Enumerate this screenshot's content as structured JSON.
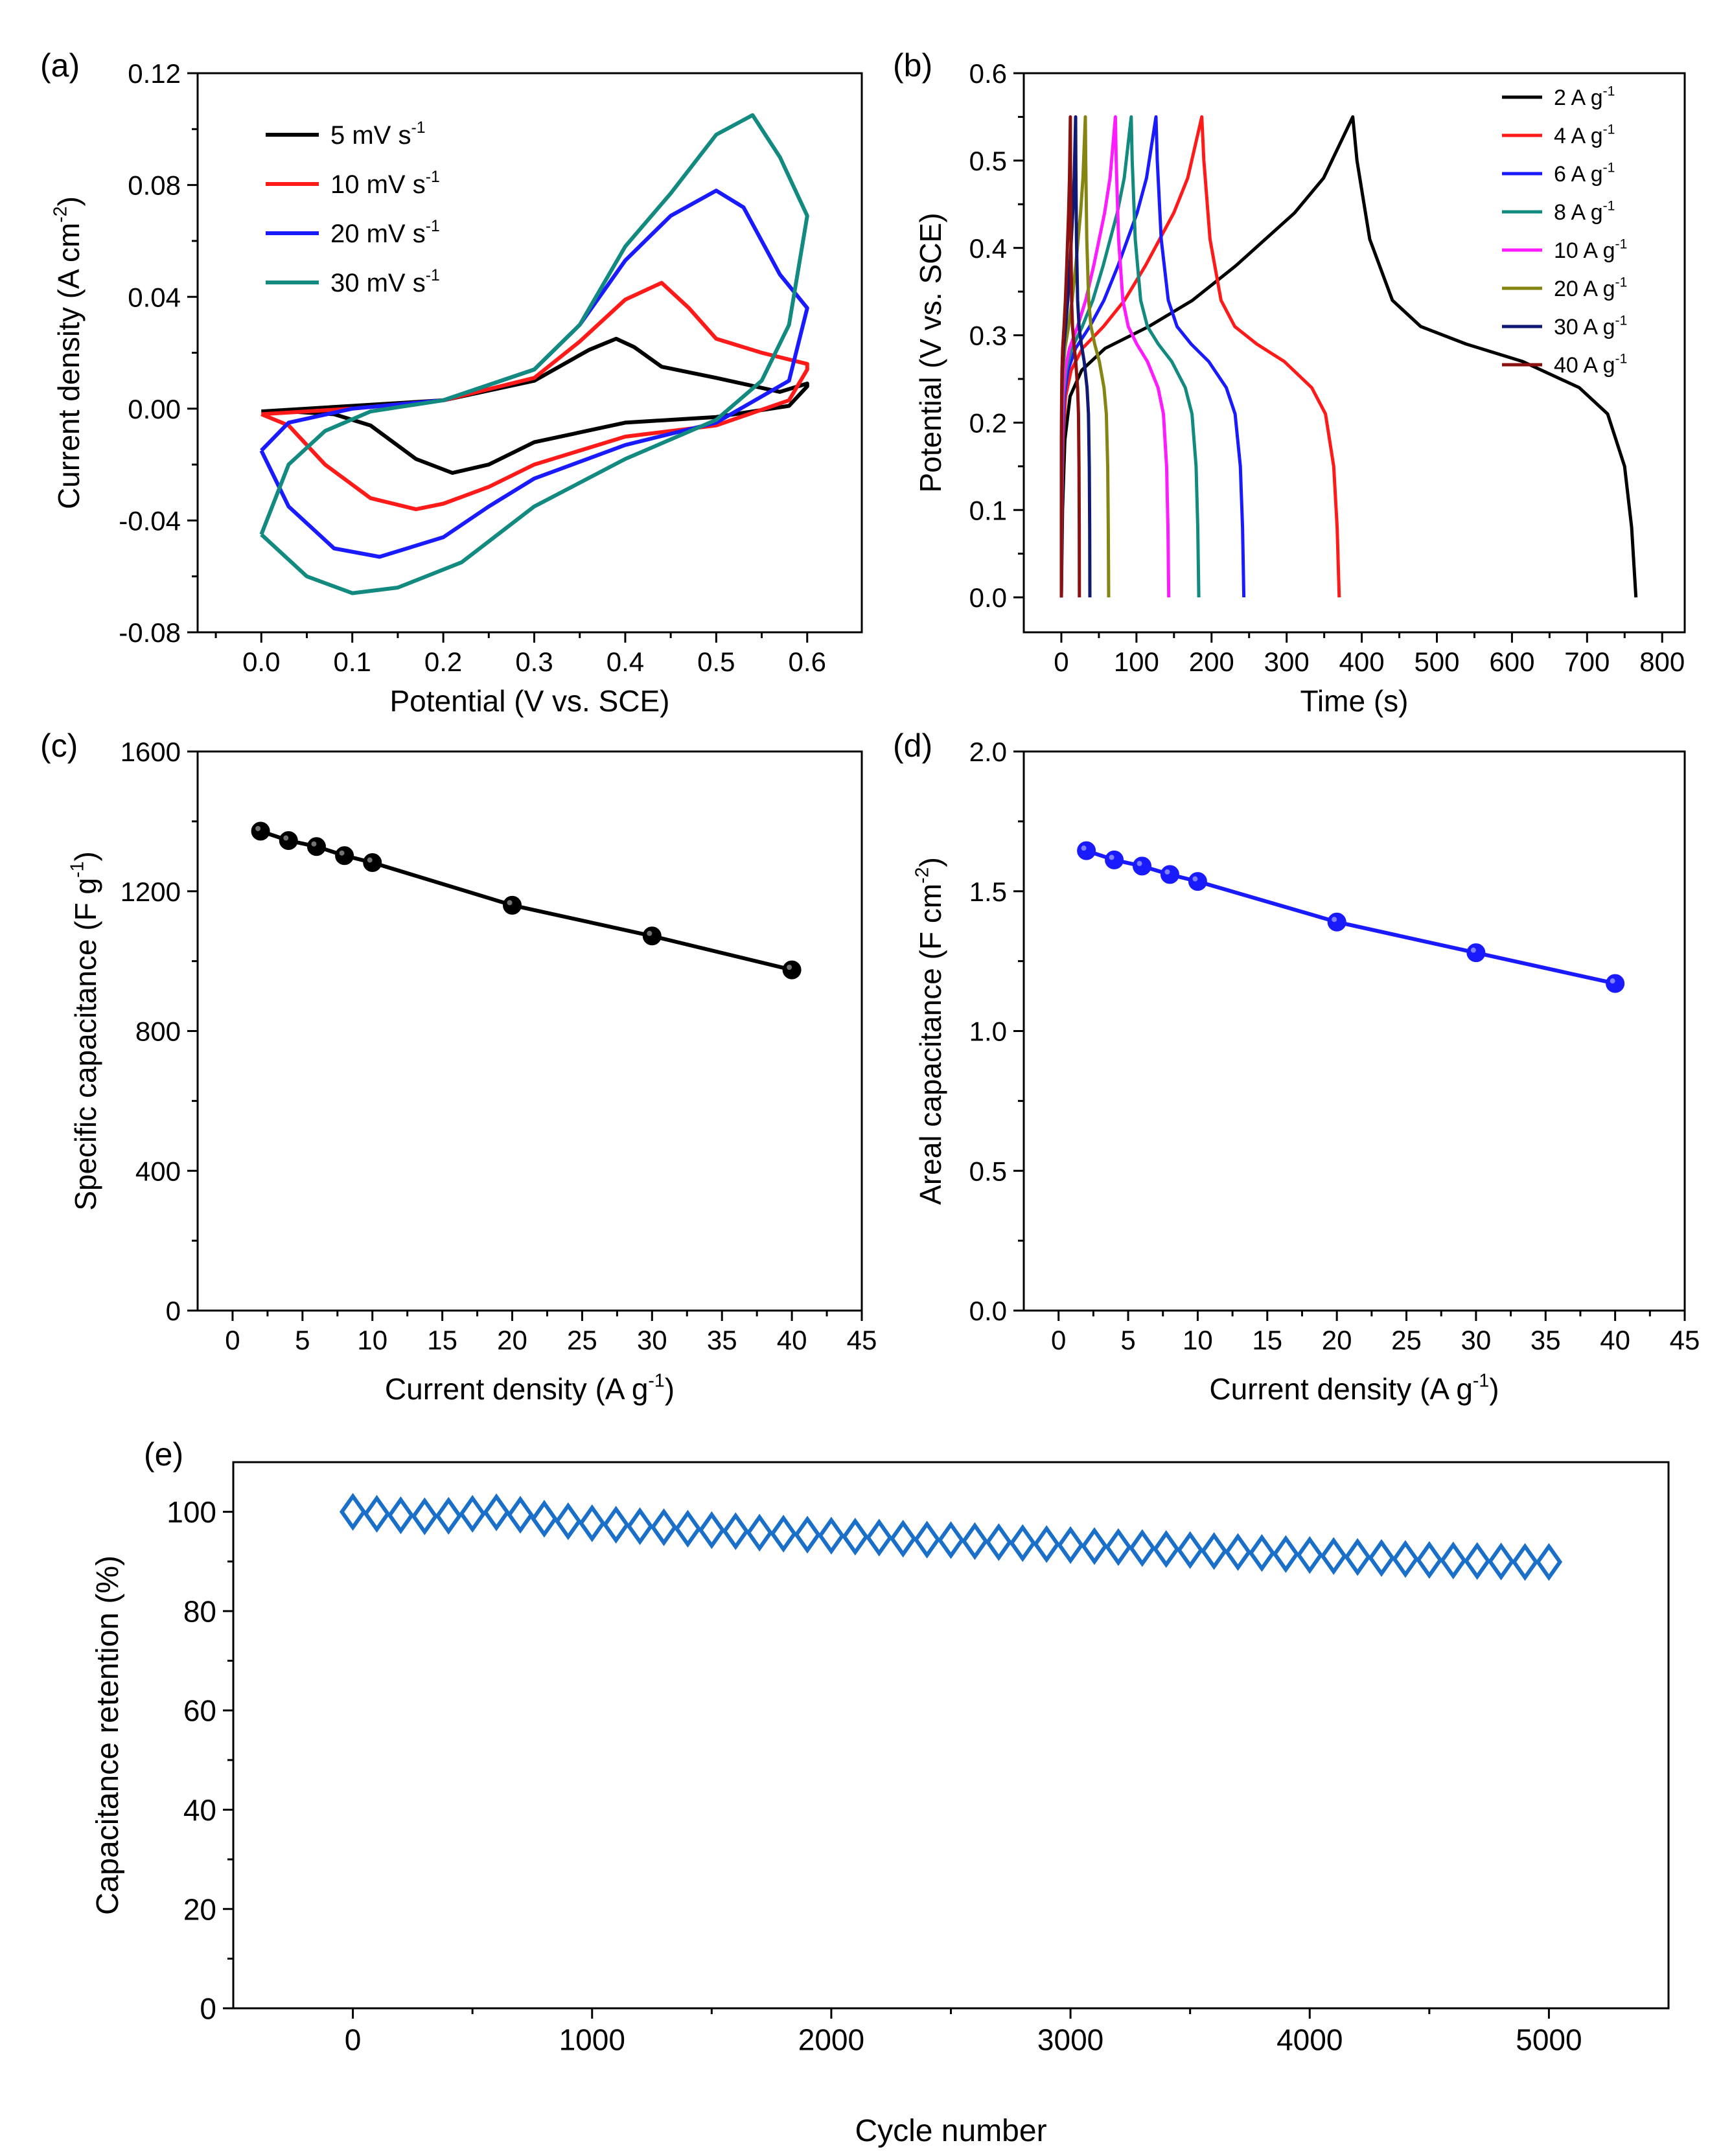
{
  "colors": {
    "black": "#000000",
    "red": "#ff1a1a",
    "blue": "#1a1aff",
    "teal": "#128a80",
    "magenta": "#ff1aff",
    "olive": "#858513",
    "navy": "#101a75",
    "maroon": "#8b1010",
    "retention": "#1a6fc9"
  },
  "chart_data": [
    {
      "panel": "(a)",
      "type": "line",
      "xlabel": "Potential (V vs. SCE)",
      "ylabel": "Current density (A cm-2)",
      "ylabel_main": "Current density (A cm",
      "ylabel_sup": "-2",
      "ylabel_close": ")",
      "xlim": [
        -0.07,
        0.66
      ],
      "ylim": [
        -0.08,
        0.12
      ],
      "xticks": [
        0.0,
        0.1,
        0.2,
        0.3,
        0.4,
        0.5,
        0.6
      ],
      "xtick_labels": [
        "0.0",
        "0.1",
        "0.2",
        "0.3",
        "0.4",
        "0.5",
        "0.6"
      ],
      "yticks": [
        -0.08,
        -0.04,
        0.0,
        0.04,
        0.08,
        0.12
      ],
      "ytick_labels": [
        "-0.08",
        "-0.04",
        "0.00",
        "0.04",
        "0.08",
        "0.12"
      ],
      "legend_position": "top-left",
      "series": [
        {
          "name": "5 mV s-1",
          "label_main": "5 mV s",
          "label_sup": "-1",
          "color": "#000000",
          "points": [
            [
              0,
              -0.001
            ],
            [
              0.1,
              0.001
            ],
            [
              0.2,
              0.003
            ],
            [
              0.3,
              0.01
            ],
            [
              0.36,
              0.021
            ],
            [
              0.39,
              0.025
            ],
            [
              0.41,
              0.022
            ],
            [
              0.44,
              0.015
            ],
            [
              0.5,
              0.011
            ],
            [
              0.57,
              0.006
            ],
            [
              0.6,
              0.009
            ],
            [
              0.6,
              0.008
            ],
            [
              0.58,
              0.001
            ],
            [
              0.5,
              -0.003
            ],
            [
              0.4,
              -0.005
            ],
            [
              0.3,
              -0.012
            ],
            [
              0.25,
              -0.02
            ],
            [
              0.21,
              -0.023
            ],
            [
              0.17,
              -0.018
            ],
            [
              0.12,
              -0.006
            ],
            [
              0.08,
              -0.002
            ],
            [
              0.03,
              -0.001
            ],
            [
              0,
              -0.001
            ]
          ]
        },
        {
          "name": "10 mV s-1",
          "label_main": "10 mV s",
          "label_sup": "-1",
          "color": "#ff1a1a",
          "points": [
            [
              0,
              -0.002
            ],
            [
              0.1,
              0.0
            ],
            [
              0.2,
              0.003
            ],
            [
              0.3,
              0.011
            ],
            [
              0.35,
              0.024
            ],
            [
              0.4,
              0.039
            ],
            [
              0.44,
              0.045
            ],
            [
              0.47,
              0.036
            ],
            [
              0.5,
              0.025
            ],
            [
              0.55,
              0.02
            ],
            [
              0.6,
              0.016
            ],
            [
              0.6,
              0.014
            ],
            [
              0.58,
              0.003
            ],
            [
              0.5,
              -0.006
            ],
            [
              0.4,
              -0.01
            ],
            [
              0.3,
              -0.02
            ],
            [
              0.25,
              -0.028
            ],
            [
              0.2,
              -0.034
            ],
            [
              0.17,
              -0.036
            ],
            [
              0.12,
              -0.032
            ],
            [
              0.07,
              -0.02
            ],
            [
              0.03,
              -0.006
            ],
            [
              0,
              -0.002
            ]
          ]
        },
        {
          "name": "20 mV s-1",
          "label_main": "20 mV s",
          "label_sup": "-1",
          "color": "#1a1aff",
          "points": [
            [
              0,
              -0.015
            ],
            [
              0.03,
              -0.005
            ],
            [
              0.1,
              0.0
            ],
            [
              0.2,
              0.003
            ],
            [
              0.3,
              0.014
            ],
            [
              0.35,
              0.03
            ],
            [
              0.4,
              0.053
            ],
            [
              0.45,
              0.069
            ],
            [
              0.5,
              0.078
            ],
            [
              0.53,
              0.072
            ],
            [
              0.57,
              0.048
            ],
            [
              0.6,
              0.036
            ],
            [
              0.58,
              0.01
            ],
            [
              0.5,
              -0.005
            ],
            [
              0.4,
              -0.013
            ],
            [
              0.3,
              -0.025
            ],
            [
              0.25,
              -0.035
            ],
            [
              0.2,
              -0.046
            ],
            [
              0.13,
              -0.053
            ],
            [
              0.08,
              -0.05
            ],
            [
              0.03,
              -0.035
            ],
            [
              0,
              -0.015
            ]
          ]
        },
        {
          "name": "30 mV s-1",
          "label_main": "30 mV s",
          "label_sup": "-1",
          "color": "#128a80",
          "points": [
            [
              0,
              -0.045
            ],
            [
              0.03,
              -0.02
            ],
            [
              0.07,
              -0.008
            ],
            [
              0.12,
              -0.001
            ],
            [
              0.2,
              0.003
            ],
            [
              0.3,
              0.014
            ],
            [
              0.35,
              0.03
            ],
            [
              0.4,
              0.058
            ],
            [
              0.45,
              0.077
            ],
            [
              0.5,
              0.098
            ],
            [
              0.54,
              0.105
            ],
            [
              0.57,
              0.09
            ],
            [
              0.6,
              0.069
            ],
            [
              0.58,
              0.03
            ],
            [
              0.55,
              0.01
            ],
            [
              0.5,
              -0.004
            ],
            [
              0.4,
              -0.018
            ],
            [
              0.3,
              -0.035
            ],
            [
              0.22,
              -0.055
            ],
            [
              0.15,
              -0.064
            ],
            [
              0.1,
              -0.066
            ],
            [
              0.05,
              -0.06
            ],
            [
              0,
              -0.045
            ]
          ]
        }
      ]
    },
    {
      "panel": "(b)",
      "type": "line",
      "xlabel": "Time (s)",
      "ylabel": "Potential (V vs. SCE)",
      "xlim": [
        -50,
        830
      ],
      "ylim": [
        -0.04,
        0.6
      ],
      "xticks": [
        0,
        100,
        200,
        300,
        400,
        500,
        600,
        700,
        800
      ],
      "xtick_labels": [
        "0",
        "100",
        "200",
        "300",
        "400",
        "500",
        "600",
        "700",
        "800"
      ],
      "yticks": [
        0.0,
        0.1,
        0.2,
        0.3,
        0.4,
        0.5,
        0.6
      ],
      "ytick_labels": [
        "0.0",
        "0.1",
        "0.2",
        "0.3",
        "0.4",
        "0.5",
        "0.6"
      ],
      "legend_position": "top-right",
      "series": [
        {
          "name": "2 A g-1",
          "label_main": "2 A g",
          "label_sup": "-1",
          "color": "#000000",
          "t_peak": 388,
          "t_end": 765
        },
        {
          "name": "4 A g-1",
          "label_main": "4 A g",
          "label_sup": "-1",
          "color": "#ff1a1a",
          "t_peak": 187,
          "t_end": 370
        },
        {
          "name": "6 A g-1",
          "label_main": "6 A g",
          "label_sup": "-1",
          "color": "#1a1aff",
          "t_peak": 126,
          "t_end": 243
        },
        {
          "name": "8 A g-1",
          "label_main": "8 A g",
          "label_sup": "-1",
          "color": "#128a80",
          "t_peak": 93,
          "t_end": 183
        },
        {
          "name": "10 A g-1",
          "label_main": "10 A g",
          "label_sup": "-1",
          "color": "#ff1aff",
          "t_peak": 72,
          "t_end": 143
        },
        {
          "name": "20 A g-1",
          "label_main": "20 A g",
          "label_sup": "-1",
          "color": "#858513",
          "t_peak": 32,
          "t_end": 63
        },
        {
          "name": "30 A g-1",
          "label_main": "30 A g",
          "label_sup": "-1",
          "color": "#101a75",
          "t_peak": 19,
          "t_end": 38
        },
        {
          "name": "40 A g-1",
          "label_main": "40 A g",
          "label_sup": "-1",
          "color": "#8b1010",
          "t_peak": 12,
          "t_end": 24
        }
      ]
    },
    {
      "panel": "(c)",
      "type": "line",
      "xlabel": "Current density (A g-1)",
      "xlabel_main": "Current density (A g",
      "xlabel_sup": "-1",
      "xlabel_close": ")",
      "ylabel": "Specific capacitance (F g-1)",
      "ylabel_main": "Specific capacitance (F g",
      "ylabel_sup": "-1",
      "ylabel_close": ")",
      "xlim": [
        -2.5,
        45
      ],
      "ylim": [
        0,
        1600
      ],
      "xticks": [
        0,
        5,
        10,
        15,
        20,
        25,
        30,
        35,
        40,
        45
      ],
      "xtick_labels": [
        "0",
        "5",
        "10",
        "15",
        "20",
        "25",
        "30",
        "35",
        "40",
        "45"
      ],
      "yticks": [
        0,
        400,
        800,
        1200,
        1600
      ],
      "ytick_labels": [
        "0",
        "400",
        "800",
        "1200",
        "1600"
      ],
      "color": "#000000",
      "x": [
        2,
        4,
        6,
        8,
        10,
        20,
        30,
        40
      ],
      "values": [
        1372,
        1345,
        1328,
        1302,
        1282,
        1160,
        1072,
        975
      ]
    },
    {
      "panel": "(d)",
      "type": "line",
      "xlabel": "Current density (A g-1)",
      "xlabel_main": "Current density (A g",
      "xlabel_sup": "-1",
      "xlabel_close": ")",
      "ylabel": "Areal capacitance (F cm-2)",
      "ylabel_main": "Areal capacitance (F cm",
      "ylabel_sup": "-2",
      "ylabel_close": ")",
      "xlim": [
        -2.5,
        45
      ],
      "ylim": [
        0,
        2.0
      ],
      "xticks": [
        0,
        5,
        10,
        15,
        20,
        25,
        30,
        35,
        40,
        45
      ],
      "xtick_labels": [
        "0",
        "5",
        "10",
        "15",
        "20",
        "25",
        "30",
        "35",
        "40",
        "45"
      ],
      "yticks": [
        0.0,
        0.5,
        1.0,
        1.5,
        2.0
      ],
      "ytick_labels": [
        "0.0",
        "0.5",
        "1.0",
        "1.5",
        "2.0"
      ],
      "color": "#1a1aff",
      "x": [
        2,
        4,
        6,
        8,
        10,
        20,
        30,
        40
      ],
      "values": [
        1.645,
        1.612,
        1.59,
        1.56,
        1.535,
        1.39,
        1.28,
        1.17
      ]
    },
    {
      "panel": "(e)",
      "type": "scatter",
      "xlabel": "Cycle number",
      "ylabel": "Capacitance retention (%)",
      "xlim": [
        -500,
        5500
      ],
      "ylim": [
        0,
        110
      ],
      "xticks": [
        0,
        1000,
        2000,
        3000,
        4000,
        5000
      ],
      "xtick_labels": [
        "0",
        "1000",
        "2000",
        "3000",
        "4000",
        "5000"
      ],
      "yticks": [
        0,
        20,
        40,
        60,
        80,
        100
      ],
      "ytick_labels": [
        "0",
        "20",
        "40",
        "60",
        "80",
        "100"
      ],
      "color": "#1a6fc9",
      "x": [
        0,
        100,
        200,
        300,
        400,
        500,
        600,
        700,
        800,
        900,
        1000,
        1100,
        1200,
        1300,
        1400,
        1500,
        1600,
        1700,
        1800,
        1900,
        2000,
        2100,
        2200,
        2300,
        2400,
        2500,
        2600,
        2700,
        2800,
        2900,
        3000,
        3100,
        3200,
        3300,
        3400,
        3500,
        3600,
        3700,
        3800,
        3900,
        4000,
        4100,
        4200,
        4300,
        4400,
        4500,
        4600,
        4700,
        4800,
        4900,
        5000
      ],
      "values": [
        100,
        99.6,
        99.3,
        99.1,
        99.2,
        99.6,
        99.9,
        99.4,
        98.6,
        98.1,
        97.7,
        97.4,
        97.1,
        96.9,
        96.6,
        96.3,
        96.1,
        95.8,
        95.6,
        95.4,
        95.2,
        95.0,
        94.8,
        94.6,
        94.4,
        94.3,
        94.1,
        93.9,
        93.7,
        93.5,
        93.3,
        93.1,
        92.9,
        92.7,
        92.5,
        92.3,
        92.1,
        91.9,
        91.7,
        91.5,
        91.3,
        91.1,
        90.9,
        90.7,
        90.5,
        90.3,
        90.2,
        90.1,
        90.0,
        89.9,
        89.9
      ]
    }
  ]
}
